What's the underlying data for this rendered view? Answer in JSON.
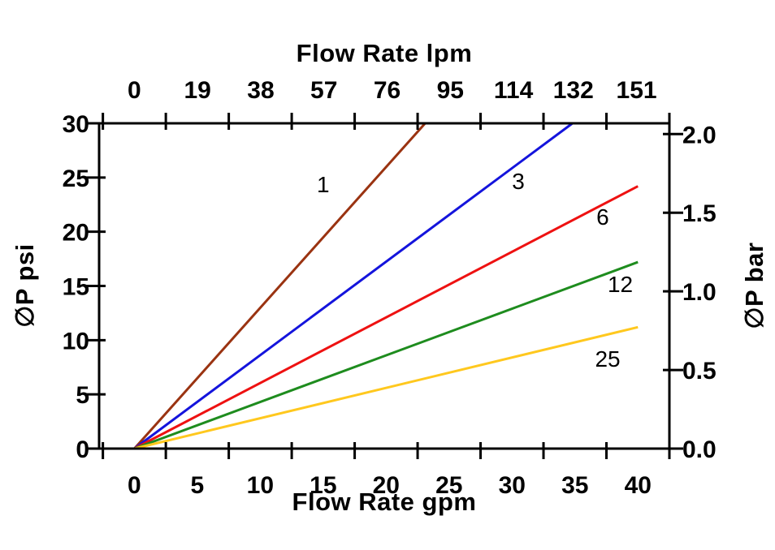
{
  "chart_data": {
    "type": "line",
    "title_top_axis": "Flow Rate lpm",
    "xlabel_bottom": "Flow Rate gpm",
    "ylabel_left": "∅P psi",
    "ylabel_right": "∅P bar",
    "x_bottom": {
      "unit": "gpm",
      "min": -2.8,
      "max": 42.5,
      "tick_label_values": [
        0,
        5,
        10,
        15,
        20,
        25,
        30,
        35,
        40
      ],
      "tick_mark_values": [
        -2.5,
        2.5,
        7.5,
        12.5,
        17.5,
        22.5,
        27.5,
        32.5,
        37.5,
        42.5
      ]
    },
    "x_top": {
      "unit": "lpm",
      "tick_label_values": [
        0,
        19,
        38,
        57,
        76,
        95,
        114,
        132,
        151
      ],
      "lpm_per_gpm": 3.78541
    },
    "y_left": {
      "unit": "psi",
      "min": 0,
      "max": 30,
      "tick_label_values": [
        0,
        5,
        10,
        15,
        20,
        25,
        30
      ]
    },
    "y_right": {
      "unit": "bar",
      "tick_labels": [
        "0.0",
        "0.5",
        "1.0",
        "1.5",
        "2.0"
      ],
      "tick_values_bar": [
        0,
        0.5,
        1.0,
        1.5,
        2.0
      ],
      "psi_per_bar": 14.5038
    },
    "grid": false,
    "series": [
      {
        "label": "1",
        "color": "#9A3311",
        "x": [
          0,
          23.1
        ],
        "y": [
          0,
          30
        ],
        "label_at": [
          15.0,
          24.4
        ]
      },
      {
        "label": "3",
        "color": "#1414DC",
        "x": [
          0,
          34.8
        ],
        "y": [
          0,
          30
        ],
        "label_at": [
          30.5,
          24.7
        ]
      },
      {
        "label": "6",
        "color": "#EE1111",
        "x": [
          0,
          40
        ],
        "y": [
          0,
          24.2
        ],
        "label_at": [
          37.2,
          21.4
        ]
      },
      {
        "label": "12",
        "color": "#1E8C1E",
        "x": [
          0,
          40
        ],
        "y": [
          0,
          17.2
        ],
        "label_at": [
          38.6,
          15.2
        ]
      },
      {
        "label": "25",
        "color": "#FFC81E",
        "x": [
          0,
          40
        ],
        "y": [
          0,
          11.2
        ],
        "label_at": [
          37.6,
          8.3
        ]
      }
    ]
  },
  "colors": {
    "axis": "#000000",
    "text": "#000000",
    "background": "#FFFFFF"
  }
}
